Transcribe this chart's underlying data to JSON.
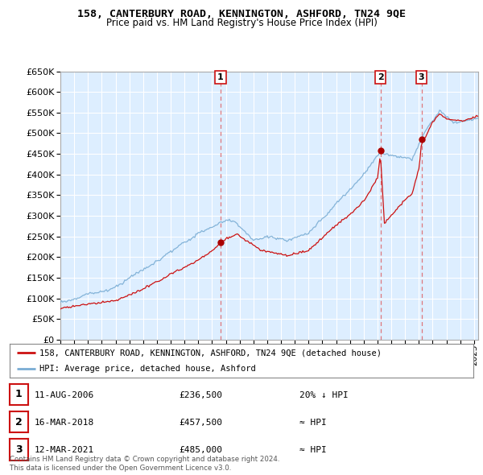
{
  "title": "158, CANTERBURY ROAD, KENNINGTON, ASHFORD, TN24 9QE",
  "subtitle": "Price paid vs. HM Land Registry's House Price Index (HPI)",
  "ylim": [
    0,
    650000
  ],
  "yticks": [
    0,
    50000,
    100000,
    150000,
    200000,
    250000,
    300000,
    350000,
    400000,
    450000,
    500000,
    550000,
    600000,
    650000
  ],
  "xlim_start": 1995.0,
  "xlim_end": 2025.3,
  "hpi_color": "#7aadd4",
  "price_color": "#cc1111",
  "bg_color": "#ffffff",
  "chart_bg_color": "#ddeeff",
  "grid_color": "#aabbcc",
  "sales": [
    {
      "date_num": 2006.61,
      "price": 236500,
      "label": "1"
    },
    {
      "date_num": 2018.21,
      "price": 457500,
      "label": "2"
    },
    {
      "date_num": 2021.19,
      "price": 485000,
      "label": "3"
    }
  ],
  "sale_dates_text": [
    "11-AUG-2006",
    "16-MAR-2018",
    "12-MAR-2021"
  ],
  "sale_prices_text": [
    "£236,500",
    "£457,500",
    "£485,000"
  ],
  "sale_hpi_text": [
    "20% ↓ HPI",
    "≈ HPI",
    "≈ HPI"
  ],
  "legend_red_label": "158, CANTERBURY ROAD, KENNINGTON, ASHFORD, TN24 9QE (detached house)",
  "legend_blue_label": "HPI: Average price, detached house, Ashford",
  "footer1": "Contains HM Land Registry data © Crown copyright and database right 2024.",
  "footer2": "This data is licensed under the Open Government Licence v3.0."
}
